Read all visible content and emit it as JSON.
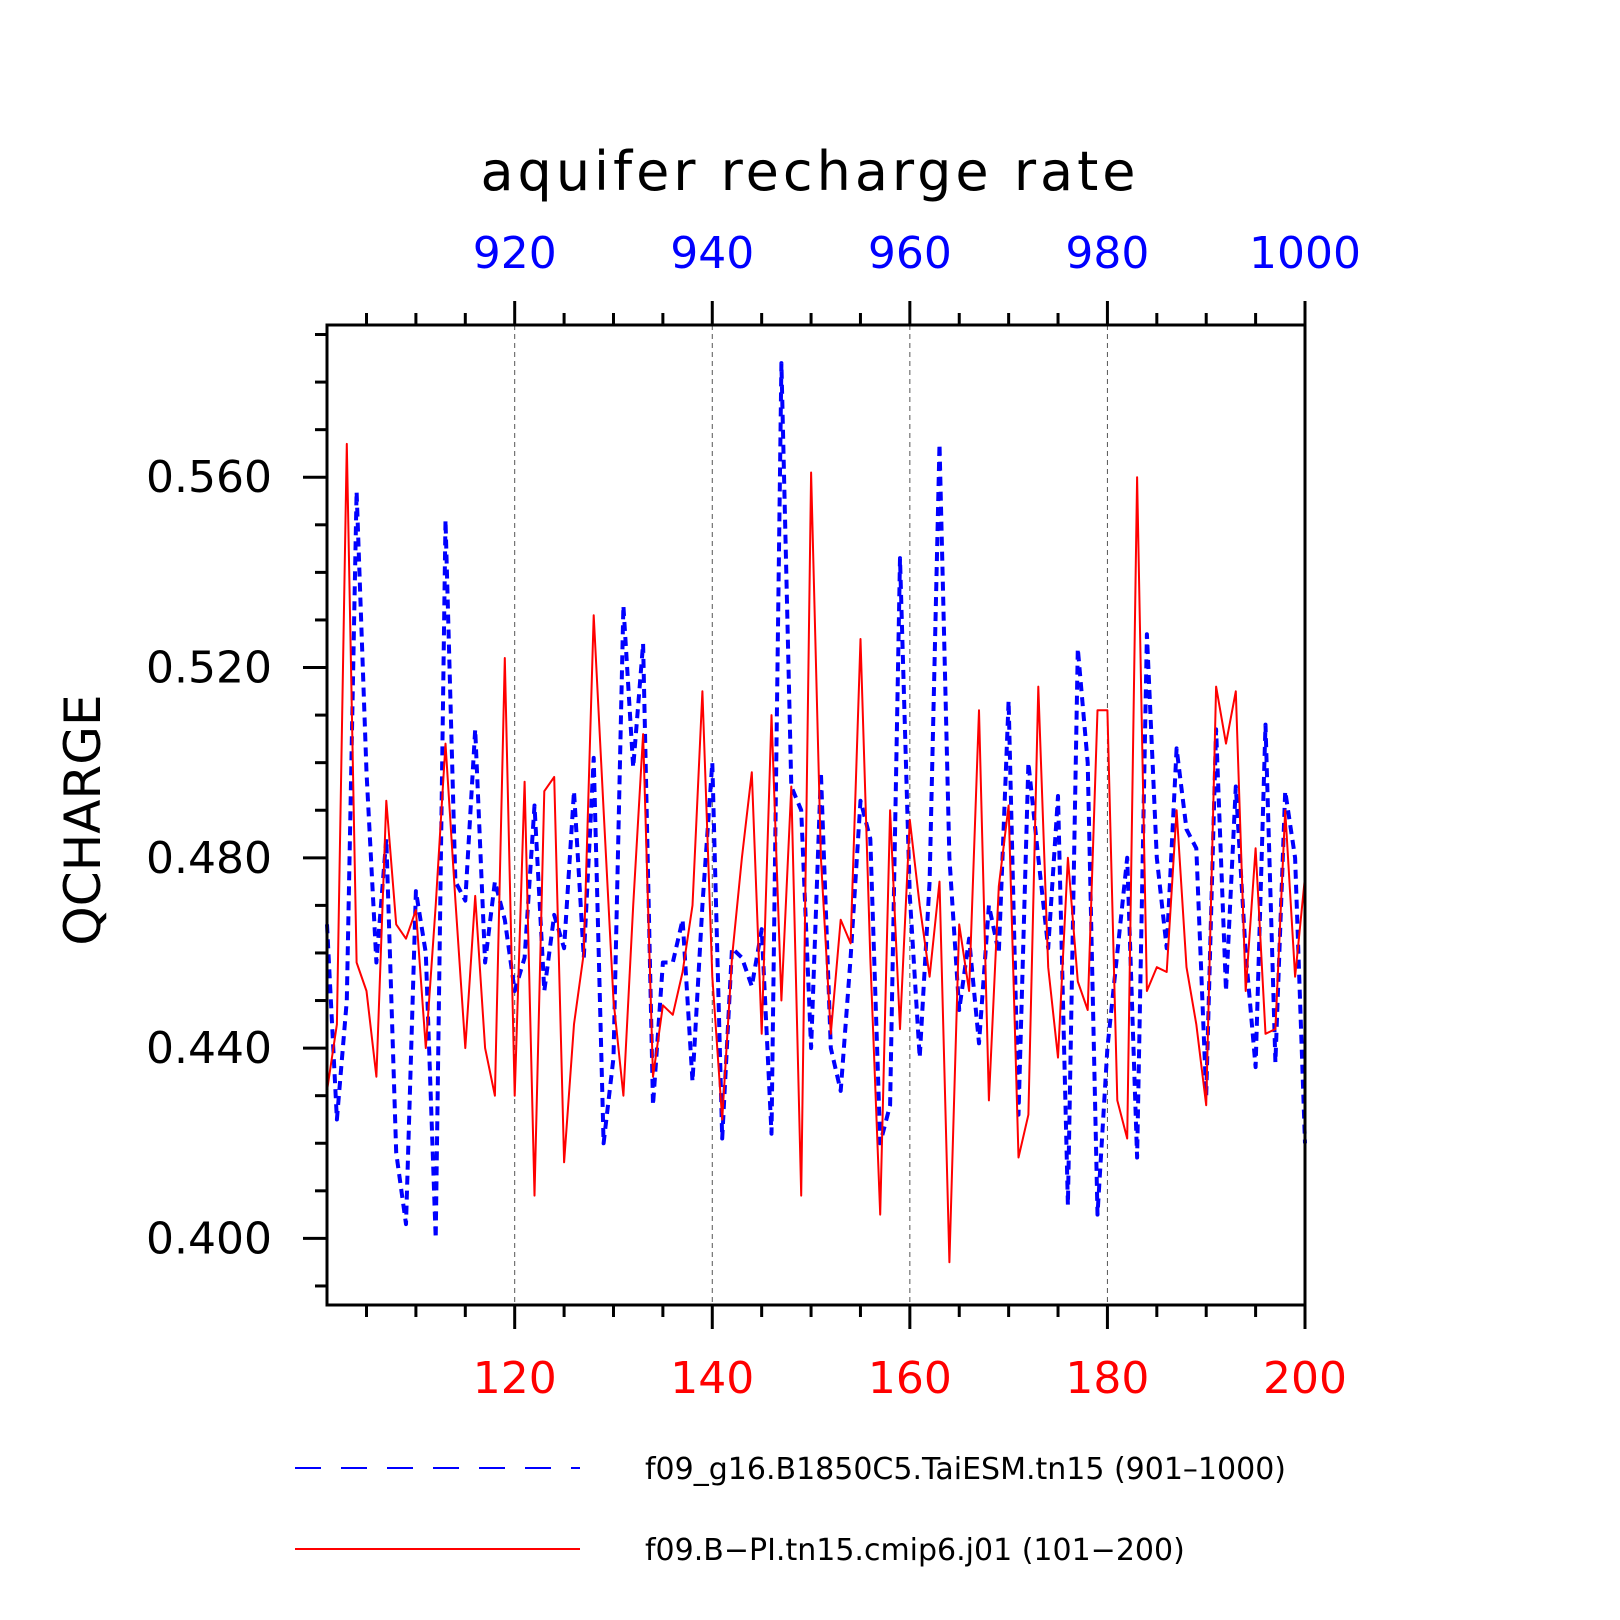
{
  "chart_data": {
    "type": "line",
    "title": "aquifer recharge rate",
    "ylabel": "QCHARGE",
    "ylim": [
      0.386,
      0.592
    ],
    "yticks": [
      "0.400",
      "0.440",
      "0.480",
      "0.520",
      "0.560"
    ],
    "ytick_values": [
      0.4,
      0.44,
      0.48,
      0.52,
      0.56
    ],
    "grid": "vertical dashed at major x ticks",
    "top_axis": {
      "range": [
        901,
        1000
      ],
      "ticks": [
        "920",
        "940",
        "960",
        "980",
        "1000"
      ],
      "tick_values": [
        920,
        940,
        960,
        980,
        1000
      ],
      "color": "#0000ff"
    },
    "bottom_axis": {
      "range": [
        101,
        200
      ],
      "ticks": [
        "120",
        "140",
        "160",
        "180",
        "200"
      ],
      "tick_values": [
        120,
        140,
        160,
        180,
        200
      ],
      "color": "#ff0000"
    },
    "legend_placement": "bottom",
    "series": [
      {
        "name": "f09_g16.B1850C5.TaiESM.tn15 (901–1000)",
        "color": "#0000ff",
        "dash": "dashed",
        "x_start": 901,
        "values": [
          0.466,
          0.425,
          0.45,
          0.557,
          0.498,
          0.458,
          0.484,
          0.418,
          0.403,
          0.473,
          0.46,
          0.4,
          0.551,
          0.475,
          0.471,
          0.507,
          0.458,
          0.475,
          0.467,
          0.452,
          0.459,
          0.491,
          0.452,
          0.468,
          0.461,
          0.494,
          0.459,
          0.501,
          0.42,
          0.438,
          0.533,
          0.499,
          0.525,
          0.428,
          0.458,
          0.458,
          0.467,
          0.433,
          0.47,
          0.5,
          0.421,
          0.461,
          0.459,
          0.453,
          0.465,
          0.422,
          0.584,
          0.495,
          0.49,
          0.44,
          0.498,
          0.44,
          0.431,
          0.459,
          0.492,
          0.484,
          0.42,
          0.428,
          0.543,
          0.472,
          0.438,
          0.475,
          0.567,
          0.48,
          0.448,
          0.463,
          0.441,
          0.47,
          0.46,
          0.513,
          0.426,
          0.5,
          0.48,
          0.461,
          0.493,
          0.407,
          0.524,
          0.5,
          0.405,
          0.44,
          0.46,
          0.48,
          0.417,
          0.527,
          0.48,
          0.461,
          0.503,
          0.486,
          0.482,
          0.43,
          0.507,
          0.452,
          0.495,
          0.46,
          0.436,
          0.508,
          0.437,
          0.494,
          0.48,
          0.42
        ]
      },
      {
        "name": "f09.B−PI.tn15.cmip6.j01 (101−200)",
        "color": "#ff0000",
        "dash": "solid",
        "x_start": 101,
        "values": [
          0.431,
          0.445,
          0.567,
          0.458,
          0.452,
          0.434,
          0.492,
          0.466,
          0.463,
          0.469,
          0.44,
          0.47,
          0.504,
          0.471,
          0.44,
          0.472,
          0.44,
          0.43,
          0.522,
          0.43,
          0.496,
          0.409,
          0.494,
          0.497,
          0.416,
          0.445,
          0.46,
          0.531,
          0.49,
          0.45,
          0.43,
          0.47,
          0.506,
          0.434,
          0.449,
          0.447,
          0.456,
          0.47,
          0.515,
          0.455,
          0.425,
          0.459,
          0.48,
          0.498,
          0.443,
          0.51,
          0.45,
          0.495,
          0.409,
          0.561,
          0.48,
          0.443,
          0.467,
          0.462,
          0.526,
          0.459,
          0.405,
          0.49,
          0.444,
          0.488,
          0.47,
          0.455,
          0.475,
          0.395,
          0.466,
          0.452,
          0.511,
          0.429,
          0.474,
          0.491,
          0.417,
          0.426,
          0.516,
          0.457,
          0.438,
          0.48,
          0.454,
          0.448,
          0.511,
          0.511,
          0.429,
          0.421,
          0.56,
          0.452,
          0.457,
          0.456,
          0.49,
          0.457,
          0.445,
          0.428,
          0.516,
          0.504,
          0.515,
          0.452,
          0.482,
          0.443,
          0.444,
          0.49,
          0.455,
          0.476
        ]
      }
    ]
  }
}
